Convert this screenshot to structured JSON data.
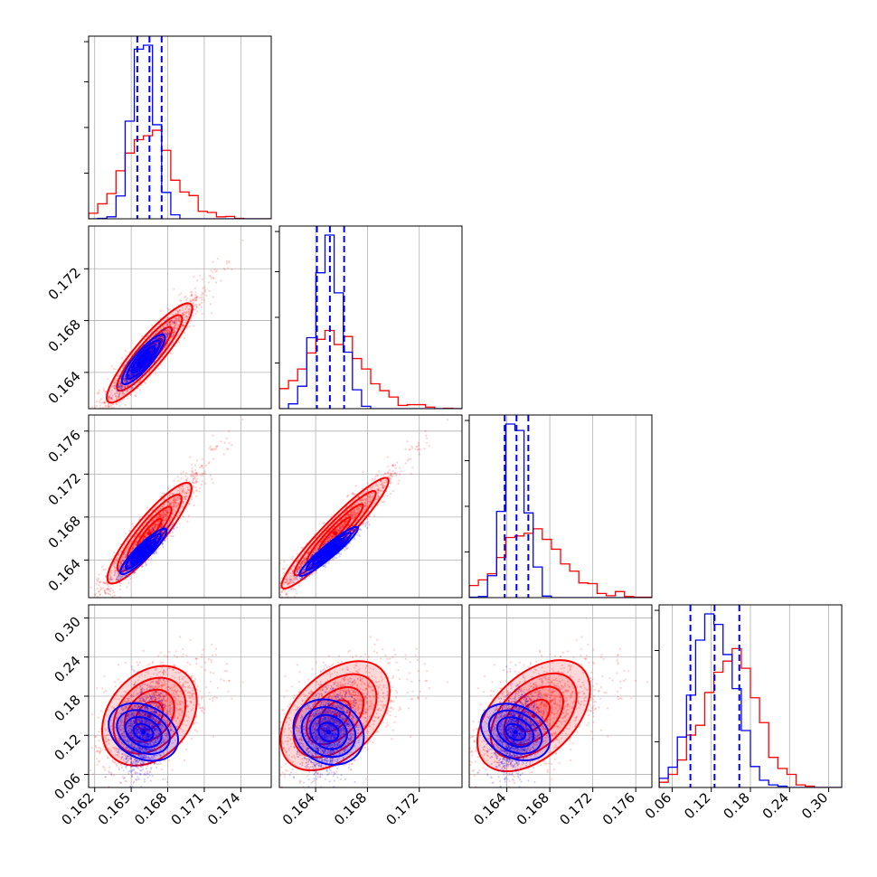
{
  "chart_data": {
    "type": "corner",
    "title": "",
    "colors": {
      "series_a": "#ff0000",
      "series_b": "#0000ff",
      "grid": "#b0b0b0",
      "frame": "#000000"
    },
    "series": [
      {
        "color": "#ff0000",
        "center": [
          0.1665,
          0.1655,
          0.1665,
          0.15
        ],
        "spread": [
          0.0018,
          0.002,
          0.0025,
          0.04
        ],
        "corr": [
          [
            1,
            0.93,
            0.93,
            0.45
          ],
          [
            0.93,
            1,
            0.95,
            0.45
          ],
          [
            0.93,
            0.95,
            1,
            0.45
          ],
          [
            0.45,
            0.45,
            0.45,
            1
          ]
        ],
        "skew": [
          0.6,
          0.6,
          0.6,
          0.2
        ]
      },
      {
        "color": "#0000ff",
        "center": [
          0.166,
          0.165,
          0.1648,
          0.125
        ],
        "spread": [
          0.0009,
          0.001,
          0.001,
          0.032
        ],
        "corr": [
          [
            1,
            0.9,
            0.9,
            0.3
          ],
          [
            0.9,
            1,
            0.92,
            0.3
          ],
          [
            0.9,
            0.92,
            1,
            0.3
          ],
          [
            0.3,
            0.3,
            0.3,
            1
          ]
        ],
        "skew": [
          0,
          0,
          0,
          0
        ]
      }
    ],
    "axes": [
      {
        "range": [
          0.1615,
          0.1765
        ],
        "ticks": [
          "0.162",
          "0.165",
          "0.168",
          "0.171",
          "0.174"
        ]
      },
      {
        "range": [
          0.1612,
          0.1753
        ],
        "ticks": [
          "0.164",
          "0.168",
          "0.172"
        ]
      },
      {
        "range": [
          0.1605,
          0.1775
        ],
        "ticks": [
          "0.164",
          "0.168",
          "0.172",
          "0.176"
        ]
      },
      {
        "range": [
          0.04,
          0.32
        ],
        "ticks": [
          "0.06",
          "0.12",
          "0.18",
          "0.24",
          "0.30"
        ]
      }
    ],
    "quantile_lines": [
      [
        0.1655,
        0.1665,
        0.1675
      ],
      [
        0.1641,
        0.1651,
        0.1662
      ],
      [
        0.1638,
        0.1649,
        0.166
      ],
      [
        0.088,
        0.125,
        0.163
      ]
    ],
    "grid": true,
    "legend": "none"
  }
}
